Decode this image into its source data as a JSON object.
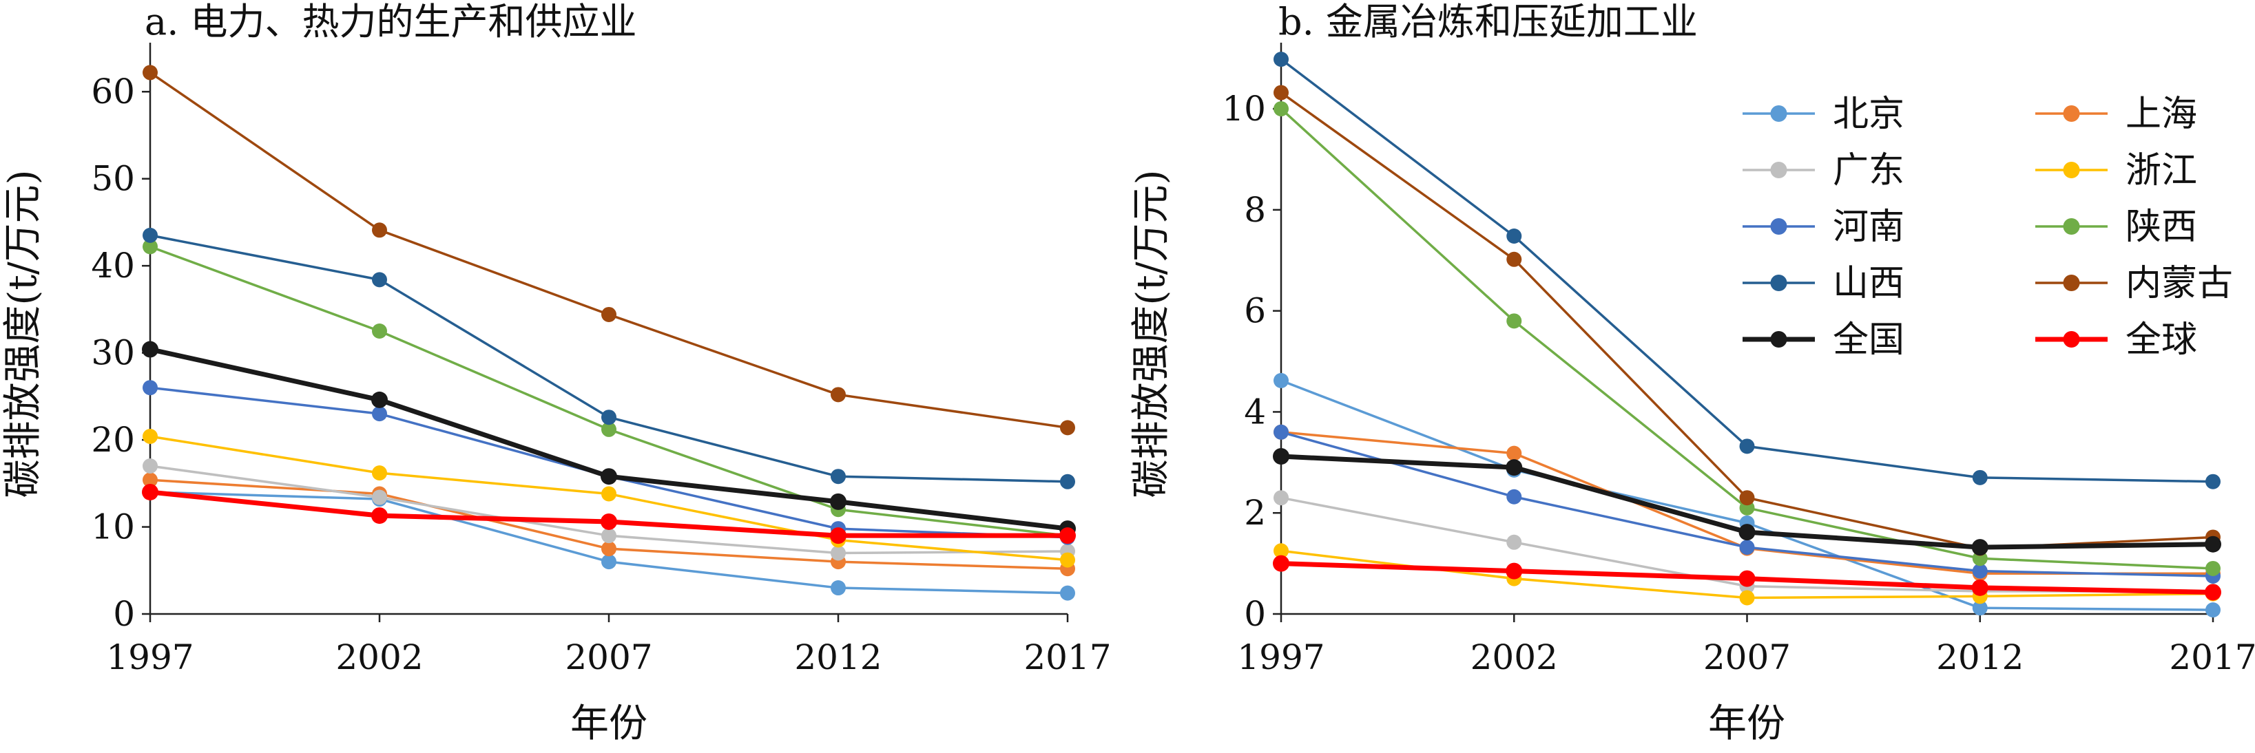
{
  "chart_data": [
    {
      "type": "line",
      "title": "a. 电力、热力的生产和供应业",
      "xlabel": "年份",
      "ylabel": "碳排放强度(t/万元)",
      "x": [
        1997,
        2002,
        2007,
        2012,
        2017
      ],
      "xticks": [
        "1997",
        "2002",
        "2007",
        "2012",
        "2017"
      ],
      "ylim": [
        0,
        65
      ],
      "yticks": [
        0,
        10,
        20,
        30,
        40,
        50,
        60
      ],
      "grid": false,
      "series": [
        {
          "name": "北京",
          "color": "#5b9bd5",
          "values": [
            14.0,
            13.2,
            6.0,
            3.0,
            2.4
          ]
        },
        {
          "name": "上海",
          "color": "#ed7d31",
          "values": [
            15.4,
            13.8,
            7.5,
            6.0,
            5.2
          ]
        },
        {
          "name": "广东",
          "color": "#bfbfbf",
          "values": [
            17.0,
            13.4,
            9.0,
            7.0,
            7.2
          ]
        },
        {
          "name": "浙江",
          "color": "#ffc000",
          "values": [
            20.4,
            16.2,
            13.8,
            8.5,
            6.2
          ]
        },
        {
          "name": "河南",
          "color": "#4472c4",
          "values": [
            26.0,
            23.0,
            15.8,
            9.8,
            8.8
          ]
        },
        {
          "name": "陕西",
          "color": "#70ad47",
          "values": [
            42.2,
            32.5,
            21.2,
            12.0,
            9.0
          ]
        },
        {
          "name": "山西",
          "color": "#255e91",
          "values": [
            43.5,
            38.4,
            22.6,
            15.8,
            15.2
          ]
        },
        {
          "name": "内蒙古",
          "color": "#9e480e",
          "values": [
            62.2,
            44.1,
            34.4,
            25.2,
            21.4
          ]
        },
        {
          "name": "全国",
          "color": "#1a1a1a",
          "values": [
            30.4,
            24.6,
            15.8,
            12.9,
            9.8
          ],
          "bold": true
        },
        {
          "name": "全球",
          "color": "#ff0000",
          "values": [
            14.0,
            11.3,
            10.6,
            9.0,
            9.0
          ],
          "bold": true
        }
      ]
    },
    {
      "type": "line",
      "title": "b. 金属冶炼和压延加工业",
      "xlabel": "年份",
      "ylabel": "碳排放强度(t/万元)",
      "x": [
        1997,
        2002,
        2007,
        2012,
        2017
      ],
      "xticks": [
        "1997",
        "2002",
        "2007",
        "2012",
        "2017"
      ],
      "ylim": [
        0,
        11.2
      ],
      "yticks": [
        0,
        2,
        4,
        6,
        8,
        10
      ],
      "grid": false,
      "legend": "top-right",
      "series": [
        {
          "name": "北京",
          "color": "#5b9bd5",
          "values": [
            4.62,
            2.85,
            1.8,
            0.12,
            0.08
          ]
        },
        {
          "name": "上海",
          "color": "#ed7d31",
          "values": [
            3.6,
            3.18,
            1.3,
            0.8,
            0.8
          ]
        },
        {
          "name": "广东",
          "color": "#bfbfbf",
          "values": [
            2.3,
            1.42,
            0.55,
            0.45,
            0.45
          ]
        },
        {
          "name": "浙江",
          "color": "#ffc000",
          "values": [
            1.25,
            0.7,
            0.32,
            0.35,
            0.4
          ]
        },
        {
          "name": "河南",
          "color": "#4472c4",
          "values": [
            3.6,
            2.32,
            1.32,
            0.85,
            0.75
          ]
        },
        {
          "name": "陕西",
          "color": "#70ad47",
          "values": [
            10.0,
            5.8,
            2.1,
            1.1,
            0.9
          ]
        },
        {
          "name": "山西",
          "color": "#255e91",
          "values": [
            10.98,
            7.48,
            3.32,
            2.7,
            2.62
          ]
        },
        {
          "name": "内蒙古",
          "color": "#9e480e",
          "values": [
            10.32,
            7.02,
            2.3,
            1.3,
            1.52
          ]
        },
        {
          "name": "全国",
          "color": "#1a1a1a",
          "values": [
            3.12,
            2.9,
            1.62,
            1.32,
            1.38
          ],
          "bold": true
        },
        {
          "name": "全球",
          "color": "#ff0000",
          "values": [
            1.0,
            0.85,
            0.7,
            0.52,
            0.43
          ],
          "bold": true
        }
      ]
    }
  ]
}
